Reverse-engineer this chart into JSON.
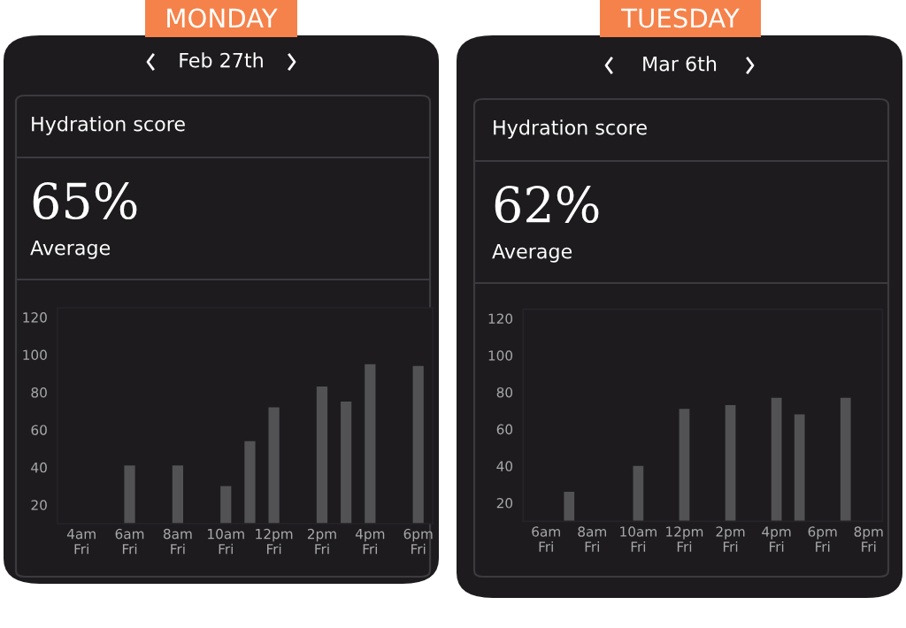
{
  "chart_data": [
    {
      "type": "bar",
      "title": "MONDAY",
      "subtitle": "Feb 27th",
      "annotations": [
        "Hydration score",
        "65%",
        "Average"
      ],
      "categories": [
        "4am\nFri",
        null,
        "6am\nFri",
        null,
        "8am\nFri",
        null,
        "10am\nFri",
        null,
        "12pm\nFri",
        null,
        "2pm\nFri",
        null,
        "4pm\nFri",
        null,
        "6pm\nFri"
      ],
      "values": [
        null,
        null,
        41,
        null,
        41,
        null,
        30,
        54,
        72,
        null,
        83,
        75,
        95,
        null,
        94
      ],
      "color": "#525254",
      "ylim": [
        10,
        125
      ],
      "yticks": [
        20,
        40,
        60,
        80,
        100,
        120
      ]
    },
    {
      "type": "bar",
      "title": "TUESDAY",
      "subtitle": "Mar 6th",
      "annotations": [
        "Hydration score",
        "62%",
        "Average"
      ],
      "categories": [
        "6am\nFri",
        null,
        "8am\nFri",
        null,
        "10am\nFri",
        null,
        "12pm\nFri",
        null,
        "2pm\nFri",
        null,
        "4pm\nFri",
        null,
        "6pm\nFri",
        null,
        "8pm\nFri"
      ],
      "values": [
        null,
        26,
        null,
        null,
        40,
        null,
        71,
        null,
        73,
        null,
        77,
        68,
        null,
        77,
        null
      ],
      "color": "#525254",
      "ylim": [
        10,
        125
      ],
      "yticks": [
        20,
        40,
        60,
        80,
        100,
        120
      ]
    }
  ]
}
